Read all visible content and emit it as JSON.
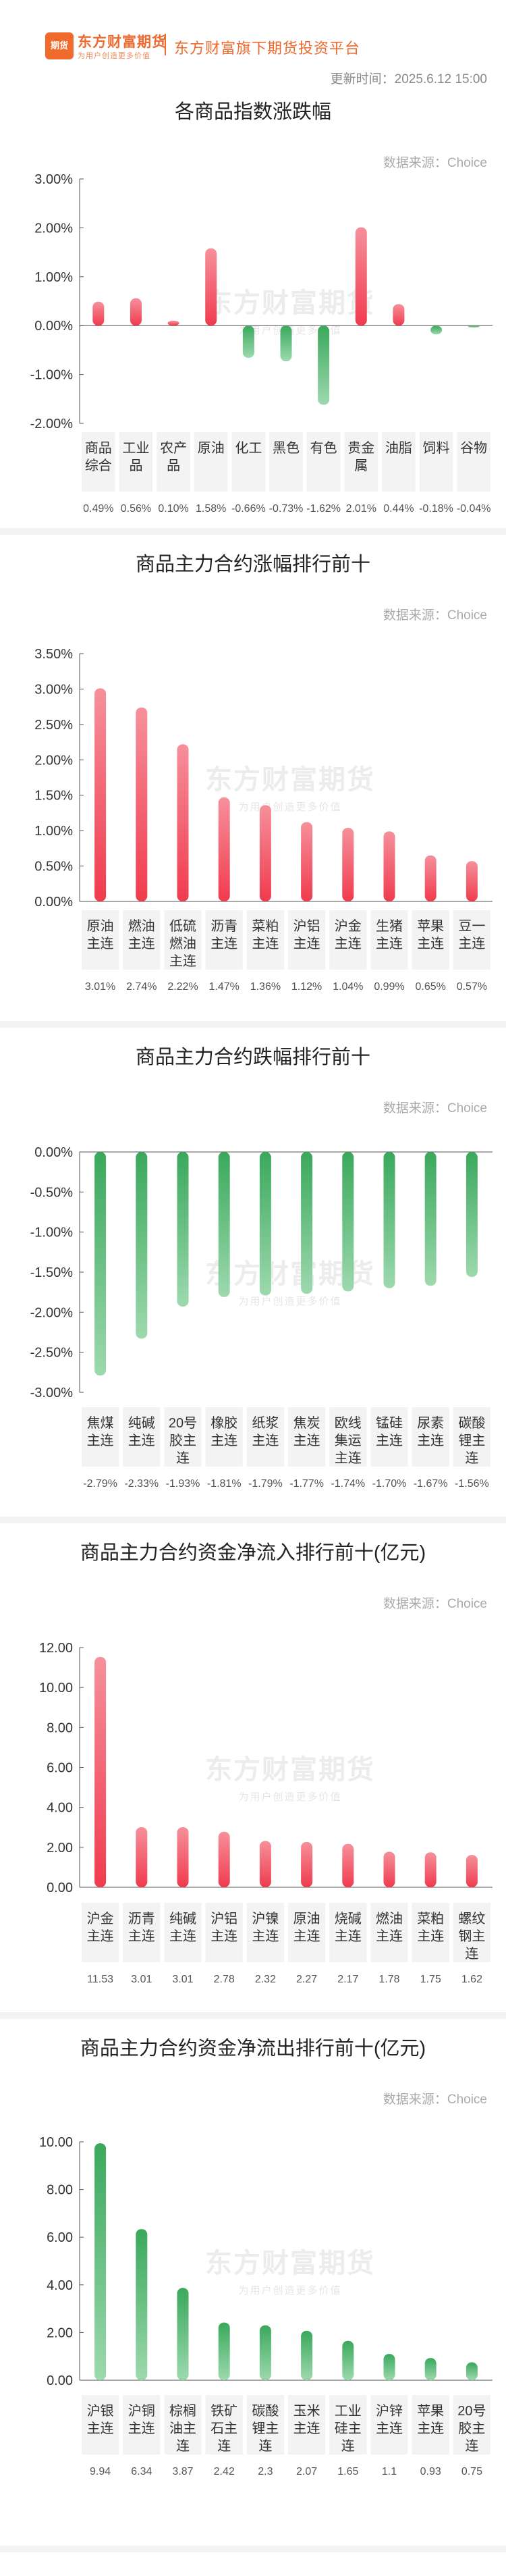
{
  "header": {
    "logo_text": "期货",
    "brand_name": "东方财富期货",
    "brand_slogan": "为用户创造更多价值",
    "platform_name": "东方财富旗下期货投资平台",
    "update_time": "更新时间：2025.6.12 15:00"
  },
  "watermark": {
    "main": "东方财富期货",
    "sub": "为用户创造更多价值"
  },
  "colors": {
    "up": "#f04b5a",
    "down": "#3fae63",
    "axis": "#333333",
    "grid": "#e4e4e4"
  },
  "chart_data": [
    {
      "type": "bar",
      "title": "各商品指数涨跌幅",
      "source": "数据来源：Choice",
      "categories": [
        [
          "商品",
          "综合"
        ],
        [
          "工业",
          "品"
        ],
        [
          "农产",
          "品"
        ],
        [
          "原油"
        ],
        [
          "化工"
        ],
        [
          "黑色"
        ],
        [
          "有色"
        ],
        [
          "贵金",
          "属"
        ],
        [
          "油脂"
        ],
        [
          "饲料"
        ],
        [
          "谷物"
        ]
      ],
      "values": [
        0.49,
        0.56,
        0.1,
        1.58,
        -0.66,
        -0.73,
        -1.62,
        2.01,
        0.44,
        -0.18,
        -0.04
      ],
      "value_labels": [
        "0.49%",
        "0.56%",
        "0.10%",
        "1.58%",
        "-0.66%",
        "-0.73%",
        "-1.62%",
        "2.01%",
        "0.44%",
        "-0.18%",
        "-0.04%"
      ],
      "yticks": [
        3,
        2,
        1,
        0,
        -1,
        -2
      ],
      "ytick_labels": [
        "3.00%",
        "2.00%",
        "1.00%",
        "0.00%",
        "-1.00%",
        "-2.00%"
      ],
      "ylim": [
        -2,
        3
      ]
    },
    {
      "type": "bar",
      "title": "商品主力合约涨幅排行前十",
      "source": "数据来源：Choice",
      "categories": [
        [
          "原油",
          "主连"
        ],
        [
          "燃油",
          "主连"
        ],
        [
          "低硫",
          "燃油",
          "主连"
        ],
        [
          "沥青",
          "主连"
        ],
        [
          "菜粕",
          "主连"
        ],
        [
          "沪铝",
          "主连"
        ],
        [
          "沪金",
          "主连"
        ],
        [
          "生猪",
          "主连"
        ],
        [
          "苹果",
          "主连"
        ],
        [
          "豆一",
          "主连"
        ]
      ],
      "values": [
        3.01,
        2.74,
        2.22,
        1.47,
        1.36,
        1.12,
        1.04,
        0.99,
        0.65,
        0.57
      ],
      "value_labels": [
        "3.01%",
        "2.74%",
        "2.22%",
        "1.47%",
        "1.36%",
        "1.12%",
        "1.04%",
        "0.99%",
        "0.65%",
        "0.57%"
      ],
      "yticks": [
        3.5,
        3,
        2.5,
        2,
        1.5,
        1,
        0.5,
        0
      ],
      "ytick_labels": [
        "3.50%",
        "3.00%",
        "2.50%",
        "2.00%",
        "1.50%",
        "1.00%",
        "0.50%",
        "0.00%"
      ],
      "ylim": [
        0,
        3.5
      ]
    },
    {
      "type": "bar",
      "title": "商品主力合约跌幅排行前十",
      "source": "数据来源：Choice",
      "categories": [
        [
          "焦煤",
          "主连"
        ],
        [
          "纯碱",
          "主连"
        ],
        [
          "20号",
          "胶主",
          "连"
        ],
        [
          "橡胶",
          "主连"
        ],
        [
          "纸浆",
          "主连"
        ],
        [
          "焦炭",
          "主连"
        ],
        [
          "欧线",
          "集运",
          "主连"
        ],
        [
          "锰硅",
          "主连"
        ],
        [
          "尿素",
          "主连"
        ],
        [
          "碳酸",
          "锂主",
          "连"
        ]
      ],
      "values": [
        -2.79,
        -2.33,
        -1.93,
        -1.81,
        -1.79,
        -1.77,
        -1.74,
        -1.7,
        -1.67,
        -1.56
      ],
      "value_labels": [
        "-2.79%",
        "-2.33%",
        "-1.93%",
        "-1.81%",
        "-1.79%",
        "-1.77%",
        "-1.74%",
        "-1.70%",
        "-1.67%",
        "-1.56%"
      ],
      "yticks": [
        0,
        -0.5,
        -1,
        -1.5,
        -2,
        -2.5,
        -3
      ],
      "ytick_labels": [
        "0.00%",
        "-0.50%",
        "-1.00%",
        "-1.50%",
        "-2.00%",
        "-2.50%",
        "-3.00%"
      ],
      "ylim": [
        -3,
        0
      ]
    },
    {
      "type": "bar",
      "title": "商品主力合约资金净流入排行前十(亿元)",
      "source": "数据来源：Choice",
      "categories": [
        [
          "沪金",
          "主连"
        ],
        [
          "沥青",
          "主连"
        ],
        [
          "纯碱",
          "主连"
        ],
        [
          "沪铝",
          "主连"
        ],
        [
          "沪镍",
          "主连"
        ],
        [
          "原油",
          "主连"
        ],
        [
          "烧碱",
          "主连"
        ],
        [
          "燃油",
          "主连"
        ],
        [
          "菜粕",
          "主连"
        ],
        [
          "螺纹",
          "钢主",
          "连"
        ]
      ],
      "values": [
        11.53,
        3.01,
        3.01,
        2.78,
        2.32,
        2.27,
        2.17,
        1.78,
        1.75,
        1.62
      ],
      "value_labels": [
        "11.53",
        "3.01",
        "3.01",
        "2.78",
        "2.32",
        "2.27",
        "2.17",
        "1.78",
        "1.75",
        "1.62"
      ],
      "yticks": [
        12,
        10,
        8,
        6,
        4,
        2,
        0
      ],
      "ytick_labels": [
        "12.00",
        "10.00",
        "8.00",
        "6.00",
        "4.00",
        "2.00",
        "0.00"
      ],
      "ylim": [
        0,
        12
      ]
    },
    {
      "type": "bar",
      "title": "商品主力合约资金净流出排行前十(亿元)",
      "source": "数据来源：Choice",
      "categories": [
        [
          "沪银",
          "主连"
        ],
        [
          "沪铜",
          "主连"
        ],
        [
          "棕榈",
          "油主",
          "连"
        ],
        [
          "铁矿",
          "石主",
          "连"
        ],
        [
          "碳酸",
          "锂主",
          "连"
        ],
        [
          "玉米",
          "主连"
        ],
        [
          "工业",
          "硅主",
          "连"
        ],
        [
          "沪锌",
          "主连"
        ],
        [
          "苹果",
          "主连"
        ],
        [
          "20号",
          "胶主",
          "连"
        ]
      ],
      "values": [
        9.94,
        6.34,
        3.87,
        2.42,
        2.3,
        2.07,
        1.65,
        1.1,
        0.93,
        0.75
      ],
      "value_labels": [
        "9.94",
        "6.34",
        "3.87",
        "2.42",
        "2.3",
        "2.07",
        "1.65",
        "1.1",
        "0.93",
        "0.75"
      ],
      "yticks": [
        10,
        8,
        6,
        4,
        2,
        0
      ],
      "ytick_labels": [
        "10.00",
        "8.00",
        "6.00",
        "4.00",
        "2.00",
        "0.00"
      ],
      "ylim": [
        0,
        10
      ]
    }
  ]
}
